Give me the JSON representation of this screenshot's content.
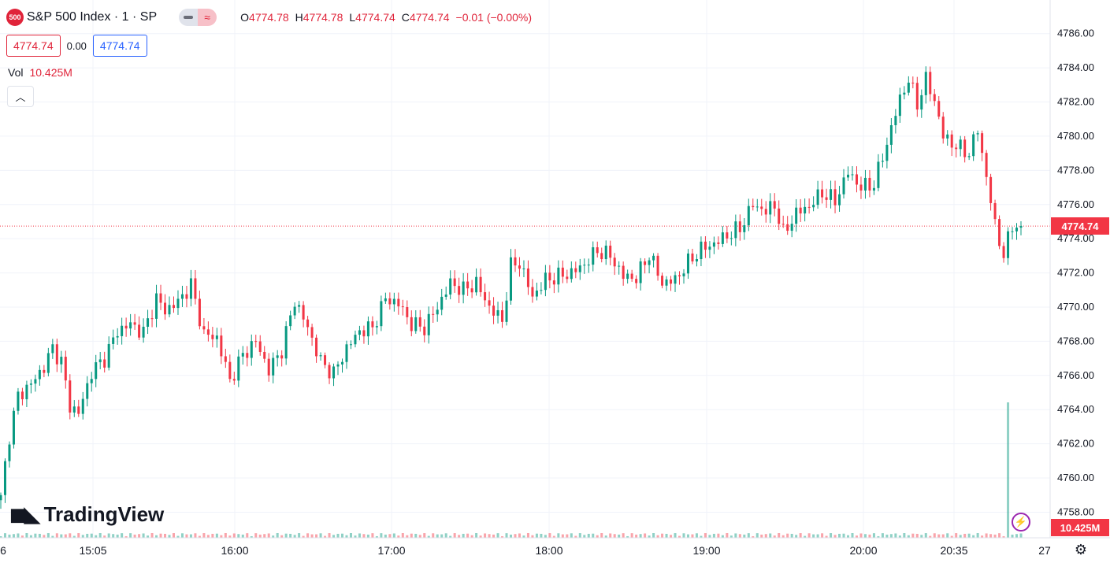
{
  "header": {
    "badge_text": "500",
    "title": "S&P 500 Index · 1 · SP",
    "ohlc": {
      "o_label": "O",
      "o_value": "4774.78",
      "h_label": "H",
      "h_value": "4774.78",
      "l_label": "L",
      "l_value": "4774.74",
      "c_label": "C",
      "c_value": "4774.74",
      "change": "−0.01 (−0.00%)"
    },
    "bid": "4774.74",
    "spread": "0.00",
    "ask": "4774.74"
  },
  "volume": {
    "label": "Vol",
    "value": "10.425M"
  },
  "collapse_icon": "chevron-up-icon",
  "logo_text": "TradingView",
  "price_scale": {
    "ticks": [
      "4786.00",
      "4784.00",
      "4782.00",
      "4780.00",
      "4778.00",
      "4776.00",
      "4774.00",
      "4772.00",
      "4770.00",
      "4768.00",
      "4766.00",
      "4764.00",
      "4762.00",
      "4760.00",
      "4758.00"
    ],
    "last_price_label": "4774.74",
    "volume_label": "10.425M"
  },
  "time_scale": {
    "ticks": [
      "6",
      "15:05",
      "16:00",
      "17:00",
      "18:00",
      "19:00",
      "20:00",
      "20:35",
      "27"
    ]
  },
  "colors": {
    "up": "#089981",
    "down": "#f23645",
    "last_price": "#f23645",
    "grid": "#f0f3fa"
  },
  "chart_data": {
    "type": "candlestick",
    "ylim": [
      4756.5,
      4787
    ],
    "anchors": [
      [
        0,
        4759.0
      ],
      [
        2,
        4762.5
      ],
      [
        4,
        4764.8
      ],
      [
        7,
        4765.5
      ],
      [
        10,
        4766.5
      ],
      [
        12,
        4767.6
      ],
      [
        14,
        4766.8
      ],
      [
        16,
        4764.2
      ],
      [
        18,
        4763.8
      ],
      [
        21,
        4766.2
      ],
      [
        24,
        4767.0
      ],
      [
        27,
        4768.6
      ],
      [
        30,
        4769.0
      ],
      [
        33,
        4768.5
      ],
      [
        36,
        4770.5
      ],
      [
        38,
        4769.8
      ],
      [
        41,
        4770.3
      ],
      [
        44,
        4771.3
      ],
      [
        47,
        4768.4
      ],
      [
        50,
        4768.2
      ],
      [
        53,
        4765.7
      ],
      [
        56,
        4767.2
      ],
      [
        59,
        4768.0
      ],
      [
        62,
        4766.3
      ],
      [
        65,
        4767.5
      ],
      [
        68,
        4770.4
      ],
      [
        71,
        4768.8
      ],
      [
        74,
        4766.8
      ],
      [
        77,
        4766.1
      ],
      [
        80,
        4767.6
      ],
      [
        83,
        4768.6
      ],
      [
        86,
        4768.8
      ],
      [
        89,
        4770.5
      ],
      [
        92,
        4770.2
      ],
      [
        95,
        4769.0
      ],
      [
        98,
        4768.8
      ],
      [
        101,
        4770.0
      ],
      [
        104,
        4771.4
      ],
      [
        107,
        4771.0
      ],
      [
        110,
        4771.4
      ],
      [
        113,
        4770.0
      ],
      [
        116,
        4769.2
      ],
      [
        118,
        4772.4
      ],
      [
        120,
        4772.6
      ],
      [
        123,
        4770.6
      ],
      [
        126,
        4771.6
      ],
      [
        129,
        4771.8
      ],
      [
        132,
        4772.0
      ],
      [
        135,
        4772.5
      ],
      [
        138,
        4773.3
      ],
      [
        141,
        4773.0
      ],
      [
        144,
        4771.8
      ],
      [
        147,
        4771.7
      ],
      [
        150,
        4773.1
      ],
      [
        153,
        4771.4
      ],
      [
        156,
        4771.6
      ],
      [
        159,
        4772.6
      ],
      [
        162,
        4773.4
      ],
      [
        165,
        4773.7
      ],
      [
        168,
        4774.2
      ],
      [
        171,
        4774.6
      ],
      [
        174,
        4776.0
      ],
      [
        177,
        4775.6
      ],
      [
        179,
        4776.0
      ],
      [
        181,
        4774.3
      ],
      [
        184,
        4775.5
      ],
      [
        187,
        4775.9
      ],
      [
        190,
        4776.7
      ],
      [
        193,
        4776.2
      ],
      [
        196,
        4777.9
      ],
      [
        199,
        4777.0
      ],
      [
        202,
        4777.2
      ],
      [
        205,
        4779.6
      ],
      [
        208,
        4782.2
      ],
      [
        210,
        4783.3
      ],
      [
        212,
        4781.9
      ],
      [
        214,
        4783.3
      ],
      [
        216,
        4782.1
      ],
      [
        218,
        4780.0
      ],
      [
        221,
        4779.4
      ],
      [
        224,
        4779.0
      ],
      [
        226,
        4780.4
      ],
      [
        228,
        4777.6
      ],
      [
        230,
        4774.8
      ],
      [
        232,
        4773.0
      ],
      [
        234,
        4774.8
      ],
      [
        236,
        4774.74
      ]
    ],
    "volume_spike": {
      "index": 233,
      "value": "10.425M"
    }
  }
}
